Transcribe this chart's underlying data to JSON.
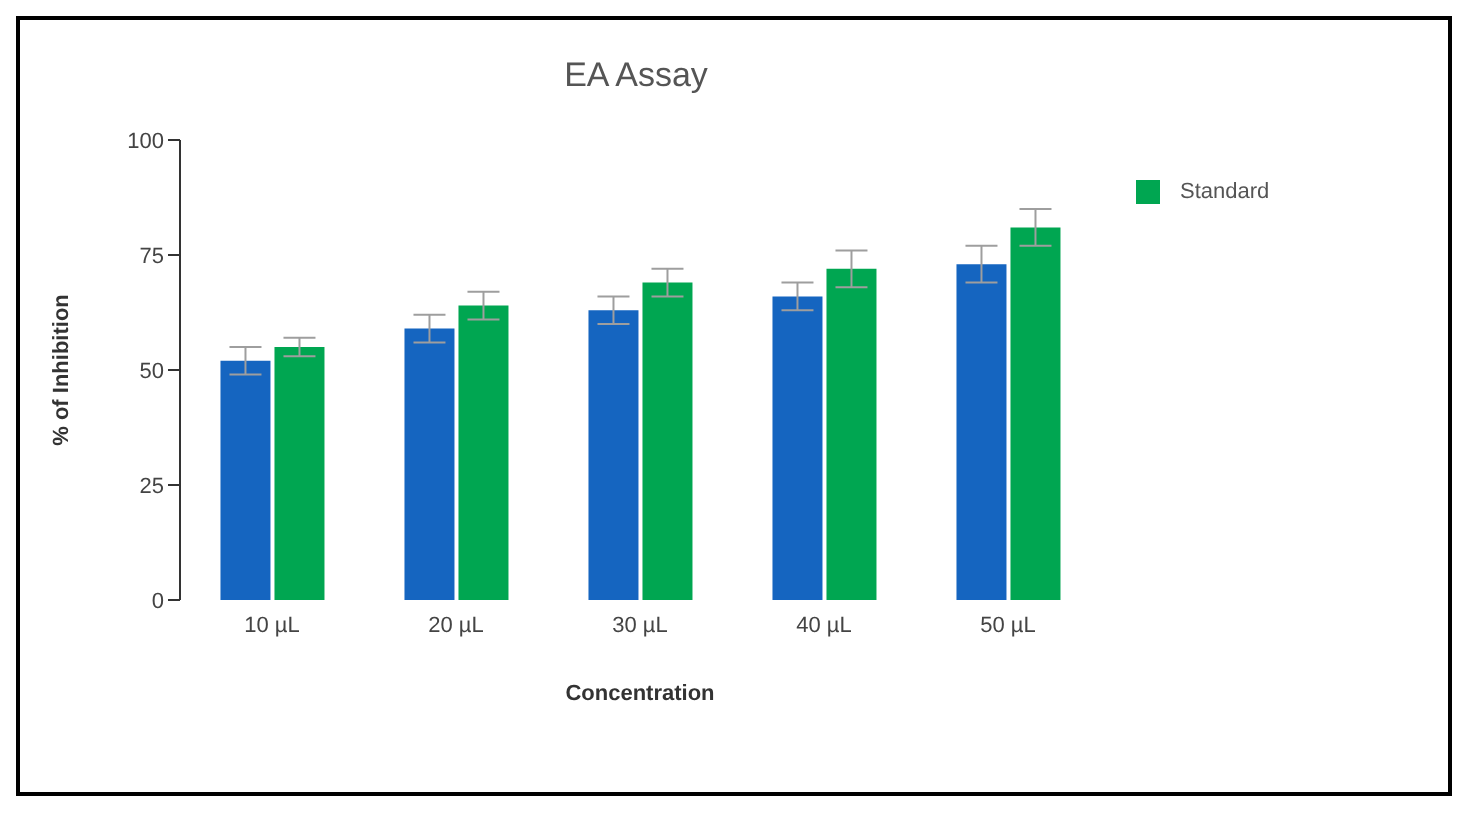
{
  "chart_data": {
    "type": "bar",
    "title": "EA Assay",
    "xlabel": "Concentration",
    "ylabel": "% of Inhibition",
    "categories": [
      "10 µL",
      "20 µL",
      "30 µL",
      "40 µL",
      "50 µL"
    ],
    "series": [
      {
        "color": "#1565c0",
        "values": [
          52,
          59,
          63,
          66,
          73
        ],
        "errors": [
          3,
          3,
          3,
          3,
          4
        ]
      },
      {
        "name": "Standard",
        "color": "#00a651",
        "values": [
          55,
          64,
          69,
          72,
          81
        ],
        "errors": [
          2,
          3,
          3,
          4,
          4
        ]
      }
    ],
    "ylim": [
      0,
      100
    ],
    "yticks": [
      0,
      25,
      50,
      75,
      100
    ],
    "grid": false,
    "legend": "top right"
  }
}
